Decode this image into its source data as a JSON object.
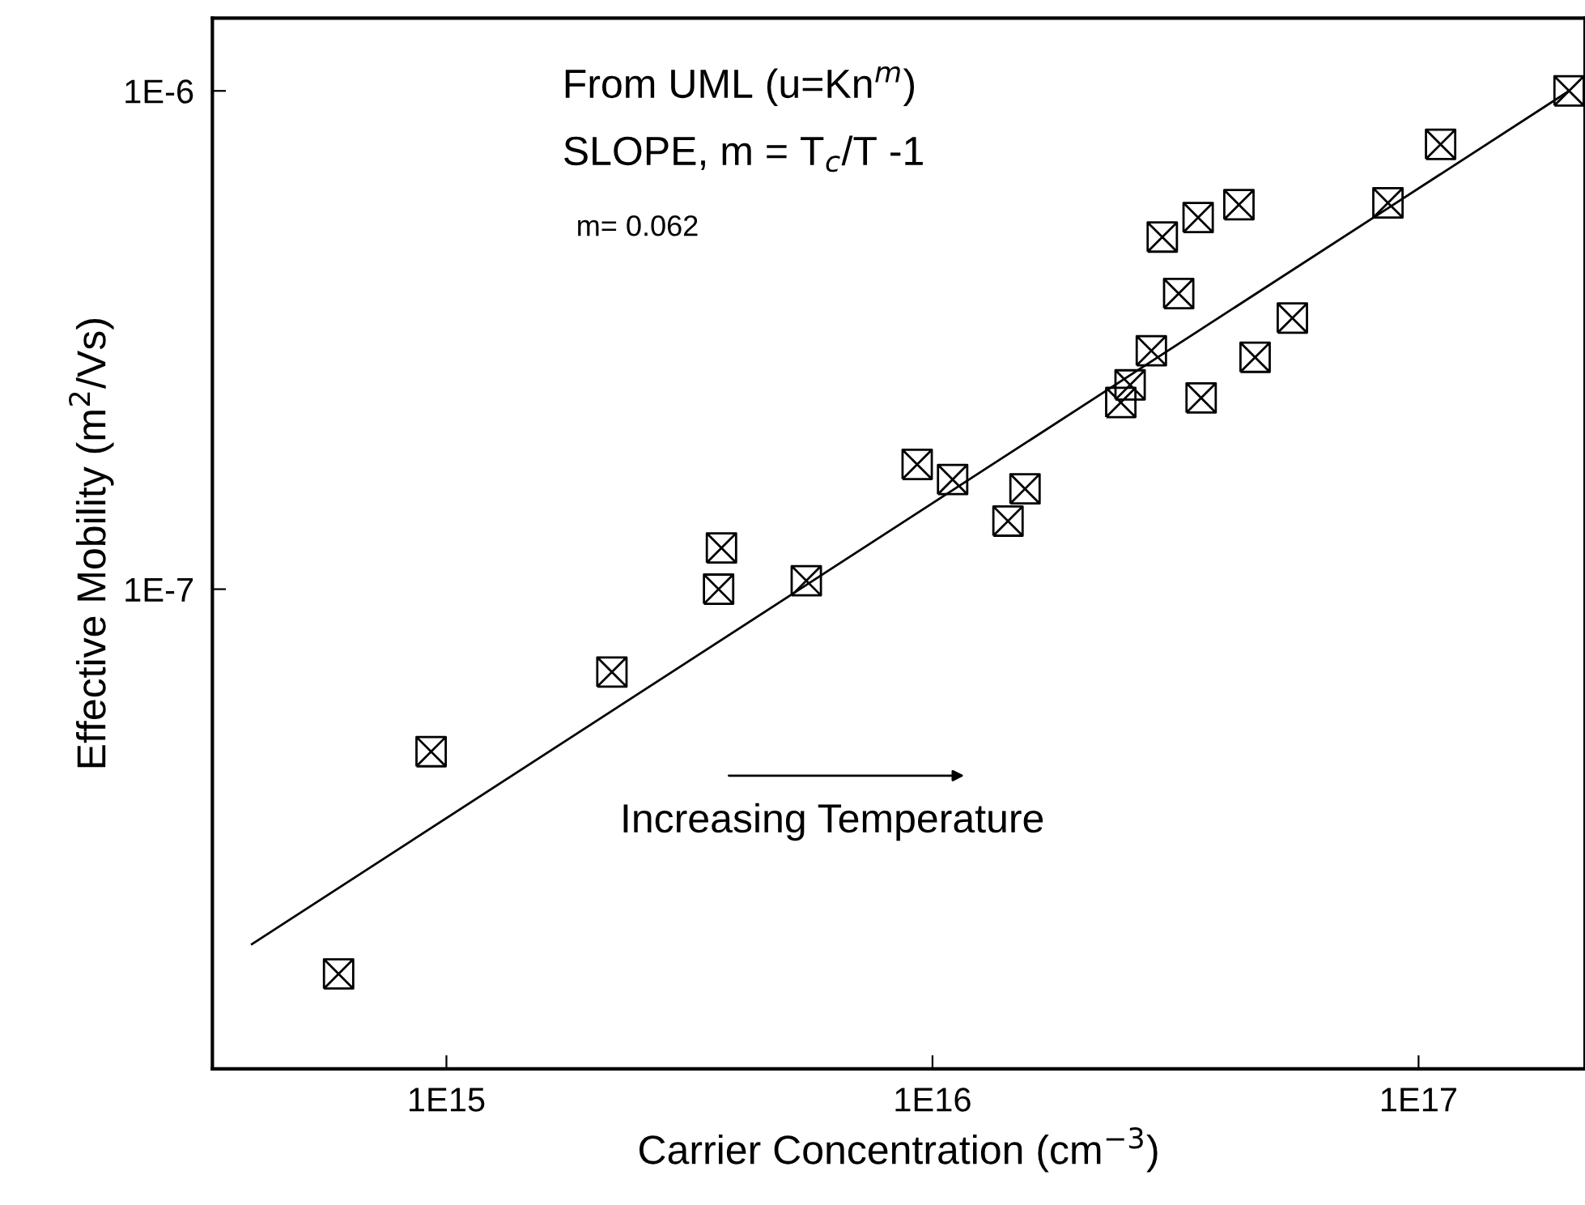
{
  "chart_data": {
    "type": "scatter",
    "xlabel": "Carrier Concentration (cm$^{−3}$)",
    "ylabel": "Effective Mobility (m$^{2}$/Vs)",
    "log": "xy",
    "xlim": [
      330000000000000.0,
      2.2e+17
    ],
    "ylim": [
      1.09e-08,
      1.4e-06
    ],
    "xticks": [
      {
        "value": 1000000000000000.0,
        "label": "1E15"
      },
      {
        "value": 1e+16,
        "label": "1E16"
      },
      {
        "value": 1e+17,
        "label": "1E17"
      }
    ],
    "yticks": [
      {
        "value": 1e-07,
        "label": "1E-7"
      },
      {
        "value": 1e-06,
        "label": "1E-6"
      }
    ],
    "grid": false,
    "legend": false,
    "marker": "cross",
    "series": [
      {
        "color": "#000000",
        "x": [
          600000000000000.0,
          930000000000000.0,
          2190000000000000.0,
          3630000000000000.0,
          3680000000000000.0,
          5500000000000000.0,
          9300000000000000.0,
          1.1e+16,
          1.43e+16,
          1.55e+16,
          2.44e+16,
          2.55e+16,
          2.82e+16,
          2.97e+16,
          3.21e+16,
          3.52e+16,
          3.57e+16,
          4.27e+16,
          4.61e+16,
          5.5e+16,
          8.65e+16,
          1.11e+17,
          2.04e+17
        ],
        "values": [
          1.69e-08,
          4.72e-08,
          6.82e-08,
          1e-07,
          1.21e-07,
          1.04e-07,
          1.78e-07,
          1.66e-07,
          1.37e-07,
          1.59e-07,
          2.37e-07,
          2.57e-07,
          3.01e-07,
          5.09e-07,
          3.92e-07,
          5.57e-07,
          2.42e-07,
          5.91e-07,
          2.92e-07,
          3.5e-07,
          5.96e-07,
          7.81e-07,
          1e-06
        ]
      },
      {
        "type": "line",
        "color": "#000000",
        "marker": "none",
        "line_style": "solid",
        "x": [
          398000000000000.0,
          2.04e+17
        ],
        "values": [
          1.94e-08,
          1e-06
        ]
      }
    ],
    "annotations": [
      "From UML (u=Kn$^{m}$)",
      "SLOPE, m = T$_{c}$/T -1",
      "m= 0.062",
      "Increasing Temperature"
    ]
  }
}
